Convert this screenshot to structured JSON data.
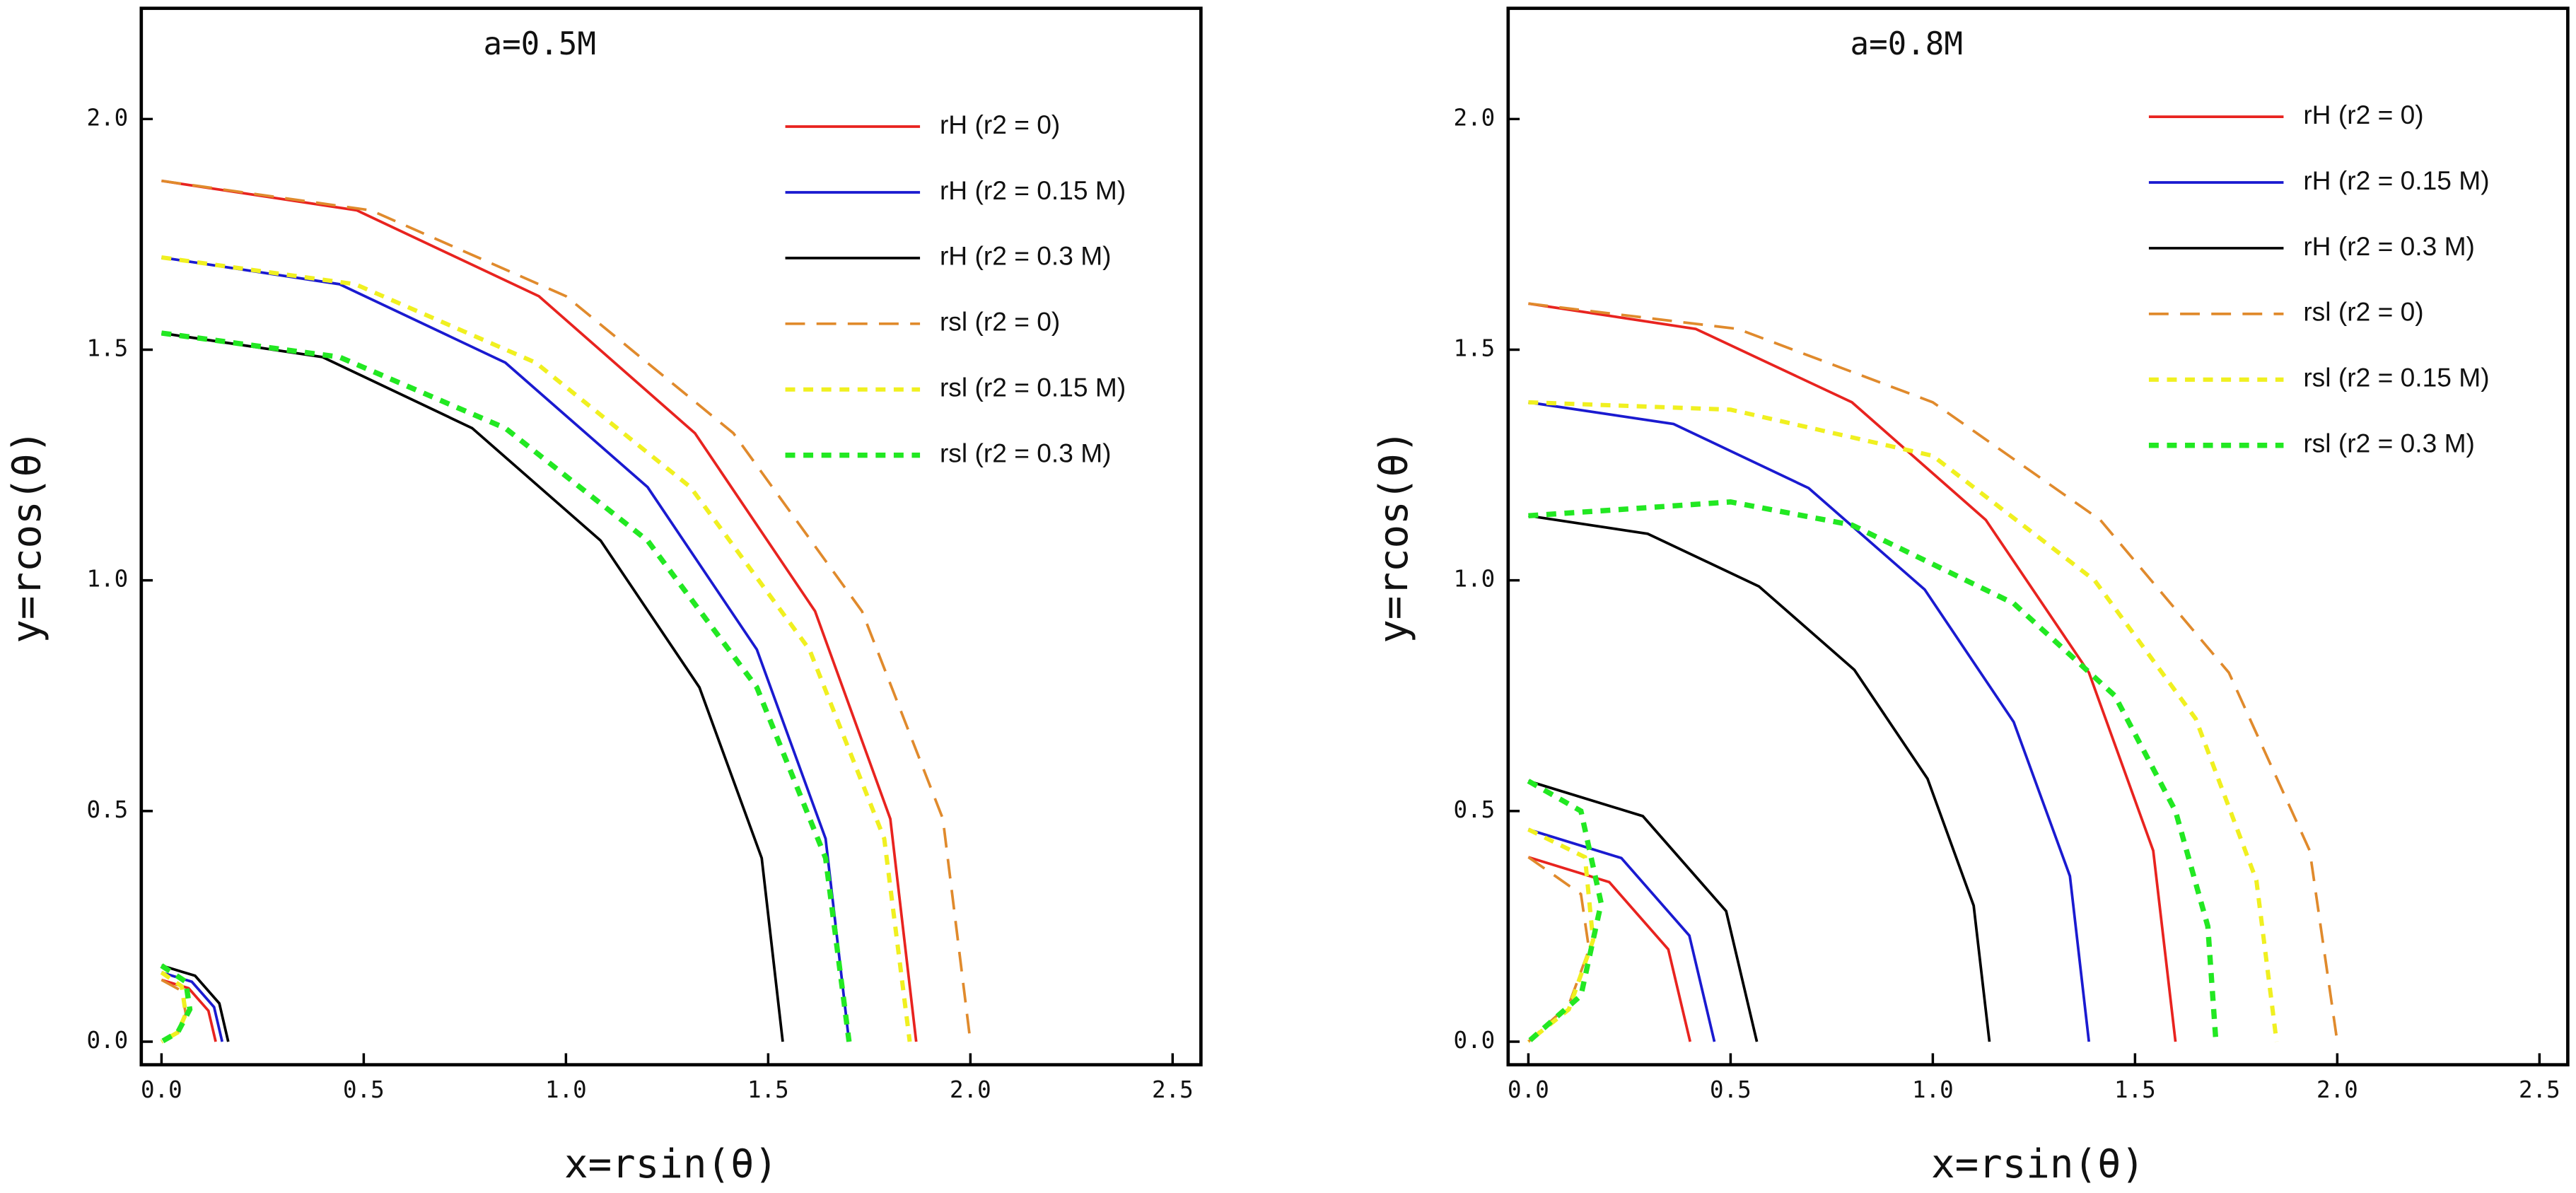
{
  "chart_data": [
    {
      "type": "line",
      "title": "a=0.5M",
      "x_label": "x=rsin(θ)",
      "y_label": "y=rcos(θ)",
      "xlim": [
        -0.05,
        2.57
      ],
      "ylim": [
        -0.05,
        2.24
      ],
      "xticks": [
        {
          "value": 0,
          "label": "0.0"
        },
        {
          "value": 0.5,
          "label": "0.5"
        },
        {
          "value": 1,
          "label": "1.0"
        },
        {
          "value": 1.5,
          "label": "1.5"
        },
        {
          "value": 2,
          "label": "2.0"
        },
        {
          "value": 2.5,
          "label": "2.5"
        }
      ],
      "yticks": [
        {
          "value": 0,
          "label": "0.0"
        },
        {
          "value": 0.5,
          "label": "0.5"
        },
        {
          "value": 1,
          "label": "1.0"
        },
        {
          "value": 1.5,
          "label": "1.5"
        },
        {
          "value": 2,
          "label": "2.0"
        }
      ],
      "legend": "upper right",
      "series": [
        {
          "name": "rH (r2 = 0)",
          "color": "#e8231f",
          "linestyle": "solid",
          "x": [
            0,
            0.483,
            0.933,
            1.319,
            1.616,
            1.802,
            1.866,
            null,
            0,
            0.067,
            0.116,
            0.134
          ],
          "y": [
            1.866,
            1.802,
            1.616,
            1.319,
            0.933,
            0.483,
            0,
            null,
            0.134,
            0.116,
            0.067,
            0
          ]
        },
        {
          "name": "rH (r2 = 0.15 M)",
          "color": "#1a1ad0",
          "linestyle": "solid",
          "x": [
            0,
            0.44,
            0.85,
            1.202,
            1.472,
            1.642,
            1.7,
            null,
            0,
            0.075,
            0.13,
            0.15
          ],
          "y": [
            1.7,
            1.642,
            1.472,
            1.202,
            0.85,
            0.44,
            0,
            null,
            0.15,
            0.13,
            0.075,
            0
          ]
        },
        {
          "name": "rH (r2 = 0.3 M)",
          "color": "#000000",
          "linestyle": "solid",
          "x": [
            0,
            0.398,
            0.768,
            1.086,
            1.33,
            1.484,
            1.536,
            null,
            0,
            0.083,
            0.143,
            0.165
          ],
          "y": [
            1.536,
            1.484,
            1.33,
            1.086,
            0.768,
            0.398,
            0,
            null,
            0.165,
            0.143,
            0.083,
            0
          ]
        },
        {
          "name": "rsl (r2 = 0)",
          "color": "#e08a2c",
          "linestyle": "dashed",
          "x": [
            0,
            0.518,
            1.0,
            1.414,
            1.732,
            1.932,
            2.0,
            null,
            0,
            0.05,
            0.06,
            0.04,
            0
          ],
          "y": [
            1.866,
            1.802,
            1.616,
            1.319,
            0.933,
            0.483,
            0,
            null,
            0.134,
            0.11,
            0.06,
            0.02,
            0
          ]
        },
        {
          "name": "rsl (r2 = 0.15 M)",
          "color": "#f0f020",
          "linestyle": "dotted",
          "x": [
            0,
            0.479,
            0.925,
            1.308,
            1.602,
            1.787,
            1.85,
            null,
            0,
            0.05,
            0.06,
            0.04,
            0
          ],
          "y": [
            1.7,
            1.642,
            1.472,
            1.202,
            0.85,
            0.44,
            0,
            null,
            0.15,
            0.12,
            0.06,
            0.02,
            0
          ]
        },
        {
          "name": "rsl (r2 = 0.3 M)",
          "color": "#22e822",
          "linestyle": "thick",
          "x": [
            0,
            0.44,
            0.85,
            1.202,
            1.472,
            1.642,
            1.7,
            null,
            0,
            0.06,
            0.07,
            0.04,
            0
          ],
          "y": [
            1.536,
            1.484,
            1.33,
            1.086,
            0.768,
            0.398,
            0,
            null,
            0.165,
            0.13,
            0.07,
            0.02,
            0
          ]
        }
      ]
    },
    {
      "type": "line",
      "title": "a=0.8M",
      "x_label": "x=rsin(θ)",
      "y_label": "y=rcos(θ)",
      "xlim": [
        -0.05,
        2.57
      ],
      "ylim": [
        -0.05,
        2.24
      ],
      "xticks": [
        {
          "value": 0,
          "label": "0.0"
        },
        {
          "value": 0.5,
          "label": "0.5"
        },
        {
          "value": 1,
          "label": "1.0"
        },
        {
          "value": 1.5,
          "label": "1.5"
        },
        {
          "value": 2,
          "label": "2.0"
        },
        {
          "value": 2.5,
          "label": "2.5"
        }
      ],
      "yticks": [
        {
          "value": 0,
          "label": "0.0"
        },
        {
          "value": 0.5,
          "label": "0.5"
        },
        {
          "value": 1,
          "label": "1.0"
        },
        {
          "value": 1.5,
          "label": "1.5"
        },
        {
          "value": 2,
          "label": "2.0"
        }
      ],
      "legend": "upper right",
      "series": [
        {
          "name": "rH (r2 = 0)",
          "color": "#e8231f",
          "linestyle": "solid",
          "x": [
            0,
            0.414,
            0.8,
            1.131,
            1.386,
            1.545,
            1.6,
            null,
            0,
            0.2,
            0.346,
            0.4
          ],
          "y": [
            1.6,
            1.545,
            1.386,
            1.131,
            0.8,
            0.414,
            0,
            null,
            0.4,
            0.346,
            0.2,
            0
          ]
        },
        {
          "name": "rH (r2 = 0.15 M)",
          "color": "#1a1ad0",
          "linestyle": "solid",
          "x": [
            0,
            0.359,
            0.693,
            0.98,
            1.2,
            1.339,
            1.386,
            null,
            0,
            0.23,
            0.398,
            0.46
          ],
          "y": [
            1.386,
            1.339,
            1.2,
            0.98,
            0.693,
            0.359,
            0,
            null,
            0.46,
            0.398,
            0.23,
            0
          ]
        },
        {
          "name": "rH (r2 = 0.3 M)",
          "color": "#000000",
          "linestyle": "solid",
          "x": [
            0,
            0.295,
            0.57,
            0.806,
            0.987,
            1.101,
            1.14,
            null,
            0,
            0.283,
            0.489,
            0.565
          ],
          "y": [
            1.14,
            1.101,
            0.987,
            0.806,
            0.57,
            0.295,
            0,
            null,
            0.565,
            0.489,
            0.283,
            0
          ]
        },
        {
          "name": "rsl (r2 = 0)",
          "color": "#e08a2c",
          "linestyle": "dashed",
          "x": [
            0,
            0.518,
            1.0,
            1.414,
            1.732,
            1.932,
            2.0,
            null,
            0,
            0.13,
            0.15,
            0.1,
            0
          ],
          "y": [
            1.6,
            1.545,
            1.386,
            1.131,
            0.8,
            0.414,
            0,
            null,
            0.4,
            0.32,
            0.2,
            0.08,
            0
          ]
        },
        {
          "name": "rsl (r2 = 0.15 M)",
          "color": "#f0f020",
          "linestyle": "dotted",
          "x": [
            0,
            0.5,
            1.0,
            1.4,
            1.65,
            1.8,
            1.85,
            null,
            0,
            0.14,
            0.16,
            0.1,
            0
          ],
          "y": [
            1.386,
            1.37,
            1.27,
            1.0,
            0.7,
            0.35,
            0,
            null,
            0.46,
            0.4,
            0.22,
            0.07,
            0
          ]
        },
        {
          "name": "rsl (r2 = 0.3 M)",
          "color": "#22e822",
          "linestyle": "thick",
          "x": [
            0,
            0.5,
            0.8,
            1.2,
            1.45,
            1.6,
            1.68,
            1.7,
            null,
            0,
            0.13,
            0.18,
            0.13,
            0
          ],
          "y": [
            1.14,
            1.17,
            1.12,
            0.95,
            0.75,
            0.5,
            0.25,
            0,
            null,
            0.565,
            0.5,
            0.3,
            0.1,
            0
          ]
        }
      ]
    }
  ]
}
